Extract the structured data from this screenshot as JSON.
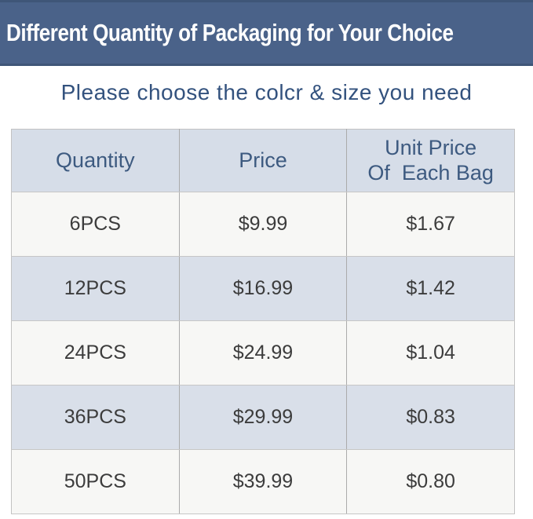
{
  "banner": {
    "title": "Different Quantity of Packaging for Your Choice",
    "bg_color": "#4a6289",
    "edge_color": "#3f5678",
    "text_color": "#ffffff"
  },
  "subtitle": {
    "text": "Please choose the colcr & size you need",
    "color": "#33527e"
  },
  "table": {
    "header_bg": "#d6dde8",
    "header_text_color": "#3d5a80",
    "row_odd_bg": "#f7f7f5",
    "row_even_bg": "#d9dfe9",
    "cell_text_color": "#3c3c3c",
    "columns": [
      {
        "label": "Quantity"
      },
      {
        "label": "Price"
      },
      {
        "label": "Unit Price",
        "label2": "Of  Each Bag"
      }
    ],
    "rows": [
      {
        "quantity": "6PCS",
        "price": "$9.99",
        "unit_price": "$1.67"
      },
      {
        "quantity": "12PCS",
        "price": "$16.99",
        "unit_price": "$1.42"
      },
      {
        "quantity": "24PCS",
        "price": "$24.99",
        "unit_price": "$1.04"
      },
      {
        "quantity": "36PCS",
        "price": "$29.99",
        "unit_price": "$0.83"
      },
      {
        "quantity": "50PCS",
        "price": "$39.99",
        "unit_price": "$0.80"
      }
    ]
  }
}
